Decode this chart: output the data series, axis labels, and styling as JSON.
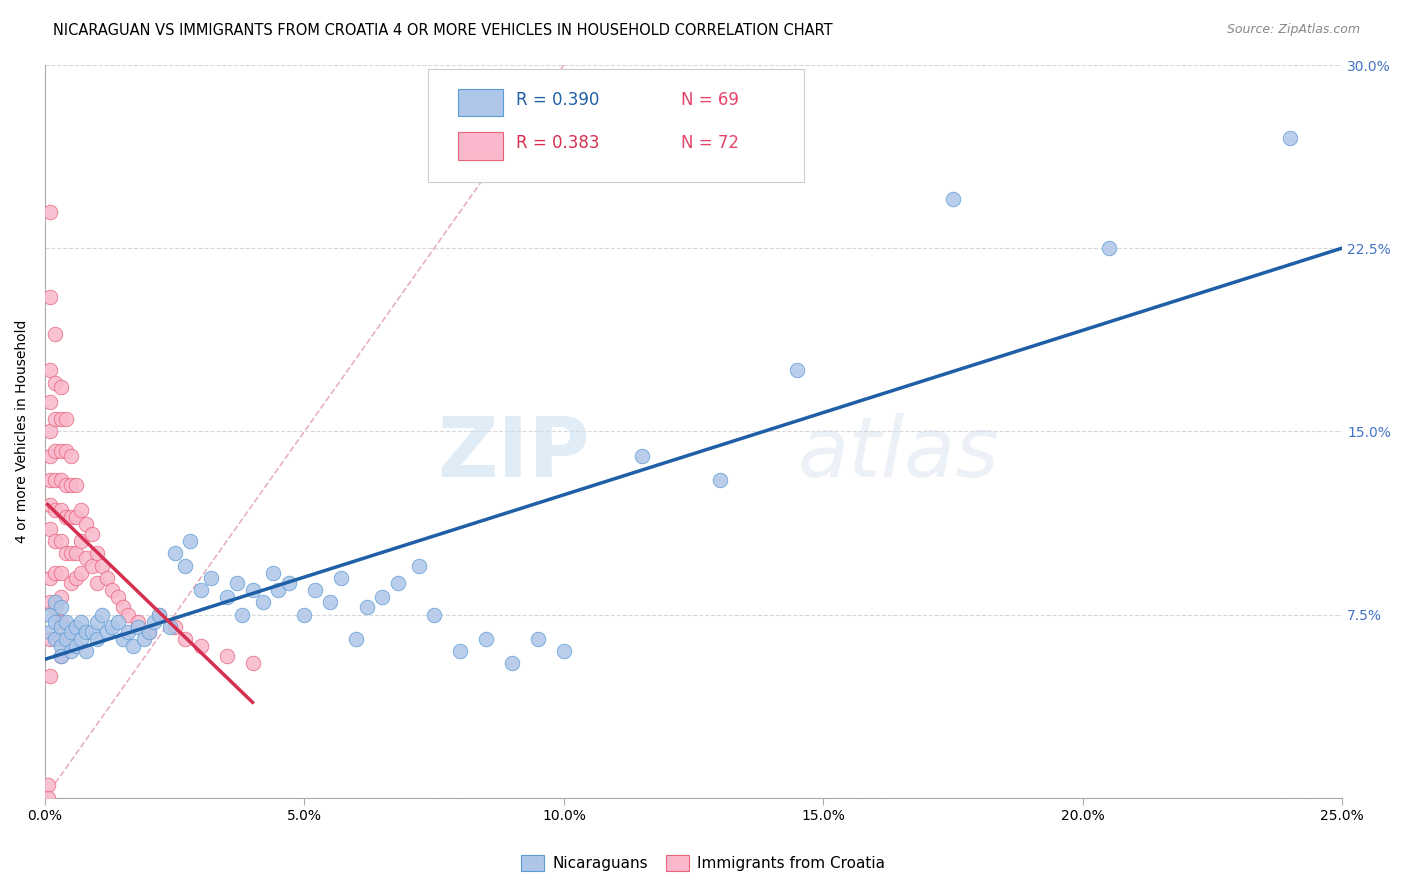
{
  "title": "NICARAGUAN VS IMMIGRANTS FROM CROATIA 4 OR MORE VEHICLES IN HOUSEHOLD CORRELATION CHART",
  "source": "Source: ZipAtlas.com",
  "ylabel": "4 or more Vehicles in Household",
  "legend_blue_r": "R = 0.390",
  "legend_blue_n": "N = 69",
  "legend_pink_r": "R = 0.383",
  "legend_pink_n": "N = 72",
  "legend_label_blue": "Nicaraguans",
  "legend_label_pink": "Immigrants from Croatia",
  "xlim": [
    0.0,
    0.25
  ],
  "ylim": [
    0.0,
    0.3
  ],
  "xticks": [
    0.0,
    0.05,
    0.1,
    0.15,
    0.2,
    0.25
  ],
  "yticks": [
    0.0,
    0.075,
    0.15,
    0.225,
    0.3
  ],
  "xticklabels": [
    "0.0%",
    "5.0%",
    "10.0%",
    "15.0%",
    "20.0%",
    "25.0%"
  ],
  "yticklabels_right": [
    "",
    "7.5%",
    "15.0%",
    "22.5%",
    "30.0%"
  ],
  "blue_color": "#aec6e8",
  "pink_color": "#f9b8cb",
  "blue_edge_color": "#5b9bd5",
  "pink_edge_color": "#e8627a",
  "blue_line_color": "#1f5fa6",
  "pink_line_color": "#d63050",
  "ref_line_color": "#e8b0be",
  "right_tick_color": "#4472c4",
  "background_color": "#ffffff",
  "watermark_zip": "ZIP",
  "watermark_atlas": "atlas",
  "title_fontsize": 10.5,
  "axis_label_fontsize": 10,
  "tick_fontsize": 10,
  "blue_x": [
    0.001,
    0.001,
    0.002,
    0.002,
    0.002,
    0.003,
    0.003,
    0.003,
    0.003,
    0.004,
    0.004,
    0.005,
    0.005,
    0.006,
    0.006,
    0.007,
    0.007,
    0.008,
    0.008,
    0.009,
    0.01,
    0.01,
    0.011,
    0.012,
    0.013,
    0.014,
    0.015,
    0.016,
    0.017,
    0.018,
    0.019,
    0.02,
    0.021,
    0.022,
    0.024,
    0.025,
    0.027,
    0.028,
    0.03,
    0.032,
    0.035,
    0.037,
    0.038,
    0.04,
    0.042,
    0.044,
    0.045,
    0.047,
    0.05,
    0.052,
    0.055,
    0.057,
    0.06,
    0.062,
    0.065,
    0.068,
    0.072,
    0.075,
    0.08,
    0.085,
    0.09,
    0.095,
    0.1,
    0.115,
    0.13,
    0.145,
    0.175,
    0.205,
    0.24
  ],
  "blue_y": [
    0.075,
    0.068,
    0.08,
    0.072,
    0.065,
    0.078,
    0.07,
    0.062,
    0.058,
    0.072,
    0.065,
    0.068,
    0.06,
    0.07,
    0.062,
    0.072,
    0.065,
    0.068,
    0.06,
    0.068,
    0.072,
    0.065,
    0.075,
    0.068,
    0.07,
    0.072,
    0.065,
    0.068,
    0.062,
    0.07,
    0.065,
    0.068,
    0.072,
    0.075,
    0.07,
    0.1,
    0.095,
    0.105,
    0.085,
    0.09,
    0.082,
    0.088,
    0.075,
    0.085,
    0.08,
    0.092,
    0.085,
    0.088,
    0.075,
    0.085,
    0.08,
    0.09,
    0.065,
    0.078,
    0.082,
    0.088,
    0.095,
    0.075,
    0.06,
    0.065,
    0.055,
    0.065,
    0.06,
    0.14,
    0.13,
    0.175,
    0.245,
    0.225,
    0.27
  ],
  "pink_x": [
    0.0005,
    0.0005,
    0.001,
    0.001,
    0.001,
    0.001,
    0.001,
    0.001,
    0.001,
    0.001,
    0.001,
    0.001,
    0.001,
    0.001,
    0.001,
    0.002,
    0.002,
    0.002,
    0.002,
    0.002,
    0.002,
    0.002,
    0.002,
    0.002,
    0.003,
    0.003,
    0.003,
    0.003,
    0.003,
    0.003,
    0.003,
    0.003,
    0.003,
    0.003,
    0.003,
    0.004,
    0.004,
    0.004,
    0.004,
    0.004,
    0.005,
    0.005,
    0.005,
    0.005,
    0.005,
    0.006,
    0.006,
    0.006,
    0.006,
    0.007,
    0.007,
    0.007,
    0.008,
    0.008,
    0.009,
    0.009,
    0.01,
    0.01,
    0.011,
    0.012,
    0.013,
    0.014,
    0.015,
    0.016,
    0.018,
    0.02,
    0.022,
    0.025,
    0.027,
    0.03,
    0.035,
    0.04
  ],
  "pink_y": [
    0.005,
    0.0,
    0.24,
    0.205,
    0.175,
    0.162,
    0.15,
    0.14,
    0.13,
    0.12,
    0.11,
    0.09,
    0.08,
    0.065,
    0.05,
    0.19,
    0.17,
    0.155,
    0.142,
    0.13,
    0.118,
    0.105,
    0.092,
    0.078,
    0.168,
    0.155,
    0.142,
    0.13,
    0.118,
    0.105,
    0.092,
    0.082,
    0.072,
    0.065,
    0.058,
    0.155,
    0.142,
    0.128,
    0.115,
    0.1,
    0.14,
    0.128,
    0.115,
    0.1,
    0.088,
    0.128,
    0.115,
    0.1,
    0.09,
    0.118,
    0.105,
    0.092,
    0.112,
    0.098,
    0.108,
    0.095,
    0.1,
    0.088,
    0.095,
    0.09,
    0.085,
    0.082,
    0.078,
    0.075,
    0.072,
    0.068,
    0.075,
    0.07,
    0.065,
    0.062,
    0.058,
    0.055
  ]
}
